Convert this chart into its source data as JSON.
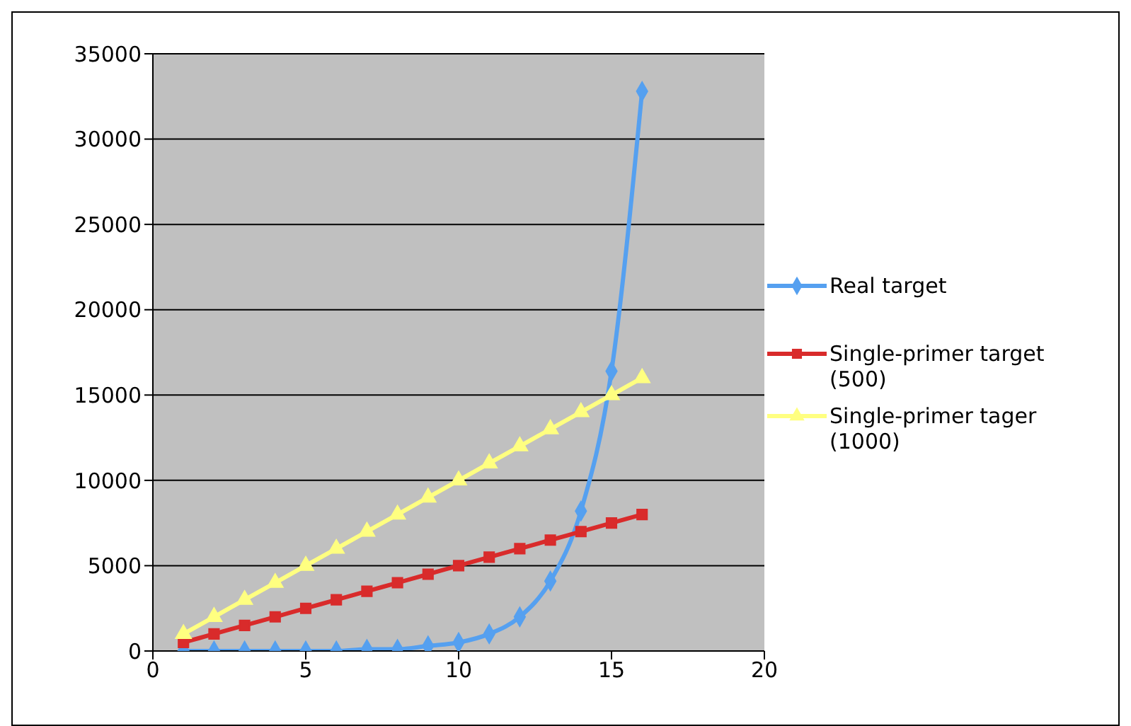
{
  "chart_data": {
    "type": "line",
    "x": [
      1,
      2,
      3,
      4,
      5,
      6,
      7,
      8,
      9,
      10,
      11,
      12,
      13,
      14,
      15,
      16
    ],
    "series": [
      {
        "name": "Real target",
        "color": "#55a0f0",
        "marker": "diamond",
        "values": [
          0,
          0,
          0,
          0,
          0,
          0,
          100,
          100,
          300,
          500,
          1000,
          2000,
          4100,
          8200,
          16400,
          32800
        ]
      },
      {
        "name": "Single-primer target (500)",
        "color": "#d92b2b",
        "marker": "square",
        "values": [
          500,
          1000,
          1500,
          2000,
          2500,
          3000,
          3500,
          4000,
          4500,
          5000,
          5500,
          6000,
          6500,
          7000,
          7500,
          8000
        ]
      },
      {
        "name": "Single-primer tager (1000)",
        "color": "#ffff80",
        "marker": "triangle",
        "values": [
          1000,
          2000,
          3000,
          4000,
          5000,
          6000,
          7000,
          8000,
          9000,
          10000,
          11000,
          12000,
          13000,
          14000,
          15000,
          16000
        ]
      }
    ],
    "xlim": [
      0,
      20
    ],
    "xticks": [
      0,
      5,
      10,
      15,
      20
    ],
    "ylim": [
      0,
      35000
    ],
    "yticks": [
      0,
      5000,
      10000,
      15000,
      20000,
      25000,
      30000,
      35000
    ],
    "grid": "y",
    "legend": "right"
  }
}
